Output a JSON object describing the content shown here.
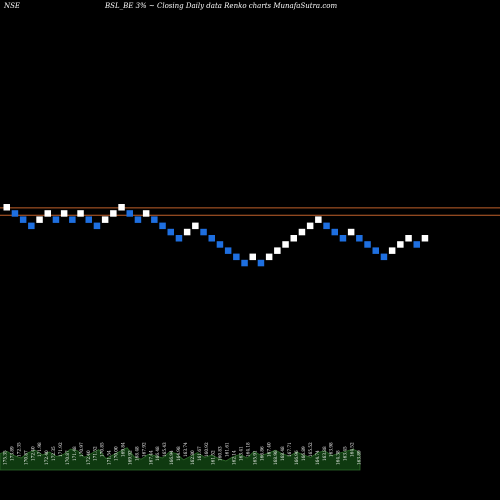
{
  "header": {
    "exchange": "NSE",
    "symbol_caption": "BSL_BE 3% ~  Closing Daily data  Renko  charts MunafaSutra.com"
  },
  "colors": {
    "background": "#000000",
    "up_brick": "#ffffff",
    "down_brick": "#1e6fe0",
    "resistance_line": "#c0602a",
    "volume_area": "#0f3a10",
    "volume_border": "#2e6b2a",
    "text": "#ffffff"
  },
  "chart_data": {
    "type": "renko",
    "title": "BSL_BE 3% ~ Closing Daily data Renko charts MunafaSutra.com",
    "bricks": [
      {
        "dir": "up",
        "level": 0
      },
      {
        "dir": "down",
        "level": -1
      },
      {
        "dir": "down",
        "level": -2
      },
      {
        "dir": "down",
        "level": -3
      },
      {
        "dir": "up",
        "level": -2
      },
      {
        "dir": "up",
        "level": -1
      },
      {
        "dir": "down",
        "level": -2
      },
      {
        "dir": "up",
        "level": -1
      },
      {
        "dir": "down",
        "level": -2
      },
      {
        "dir": "up",
        "level": -1
      },
      {
        "dir": "down",
        "level": -2
      },
      {
        "dir": "down",
        "level": -3
      },
      {
        "dir": "up",
        "level": -2
      },
      {
        "dir": "up",
        "level": -1
      },
      {
        "dir": "up",
        "level": 0
      },
      {
        "dir": "down",
        "level": -1
      },
      {
        "dir": "down",
        "level": -2
      },
      {
        "dir": "up",
        "level": -1
      },
      {
        "dir": "down",
        "level": -2
      },
      {
        "dir": "down",
        "level": -3
      },
      {
        "dir": "down",
        "level": -4
      },
      {
        "dir": "down",
        "level": -5
      },
      {
        "dir": "up",
        "level": -4
      },
      {
        "dir": "up",
        "level": -3
      },
      {
        "dir": "down",
        "level": -4
      },
      {
        "dir": "down",
        "level": -5
      },
      {
        "dir": "down",
        "level": -6
      },
      {
        "dir": "down",
        "level": -7
      },
      {
        "dir": "down",
        "level": -8
      },
      {
        "dir": "down",
        "level": -9
      },
      {
        "dir": "up",
        "level": -8
      },
      {
        "dir": "down",
        "level": -9
      },
      {
        "dir": "up",
        "level": -8
      },
      {
        "dir": "up",
        "level": -7
      },
      {
        "dir": "up",
        "level": -6
      },
      {
        "dir": "up",
        "level": -5
      },
      {
        "dir": "up",
        "level": -4
      },
      {
        "dir": "up",
        "level": -3
      },
      {
        "dir": "up",
        "level": -2
      },
      {
        "dir": "down",
        "level": -3
      },
      {
        "dir": "down",
        "level": -4
      },
      {
        "dir": "down",
        "level": -5
      },
      {
        "dir": "up",
        "level": -4
      },
      {
        "dir": "down",
        "level": -5
      },
      {
        "dir": "down",
        "level": -6
      },
      {
        "dir": "down",
        "level": -7
      },
      {
        "dir": "down",
        "level": -8
      },
      {
        "dir": "up",
        "level": -7
      },
      {
        "dir": "up",
        "level": -6
      },
      {
        "dir": "up",
        "level": -5
      },
      {
        "dir": "down",
        "level": -6
      },
      {
        "dir": "up",
        "level": -5
      }
    ],
    "resistance_lines": [
      {
        "level": -0.3
      },
      {
        "level": -1.5
      }
    ],
    "volume_labels": [
      "175.35",
      "173.89",
      "172.35",
      "170.87",
      "172.40",
      "171.98",
      "172.40",
      "172.35",
      "171.92",
      "170.87",
      "171.48",
      "170.97",
      "172.40",
      "171.52",
      "170.85",
      "171.54",
      "170.00",
      "169.84",
      "169.92",
      "168.48",
      "167.92",
      "167.44",
      "166.48",
      "165.43",
      "166.94",
      "164.98",
      "163.74",
      "162.80",
      "161.67",
      "160.92",
      "161.52",
      "160.83",
      "161.61",
      "162.14",
      "163.41",
      "164.18",
      "165.91",
      "166.86",
      "167.40",
      "168.98",
      "168.48",
      "167.71",
      "166.96",
      "166.89",
      "165.52",
      "164.74",
      "163.88",
      "163.98",
      "164.38",
      "163.45",
      "164.52",
      "163.89"
    ],
    "volume_profile": [
      0.55,
      0.62,
      0.48,
      0.4,
      0.58,
      0.66,
      0.5,
      0.6,
      0.45,
      0.52,
      0.7,
      0.64,
      0.42,
      0.56,
      0.68,
      0.38,
      0.5,
      0.62,
      0.74,
      0.44,
      0.36,
      0.52,
      0.48,
      0.4,
      0.6,
      0.55,
      0.34,
      0.46,
      0.58,
      0.42,
      0.5,
      0.38,
      0.3,
      0.44,
      0.52,
      0.4,
      0.62,
      0.48,
      0.56,
      0.66,
      0.54,
      0.46,
      0.6,
      0.5,
      0.42,
      0.58,
      0.64,
      0.48,
      0.56,
      0.62,
      0.7,
      0.58
    ]
  }
}
